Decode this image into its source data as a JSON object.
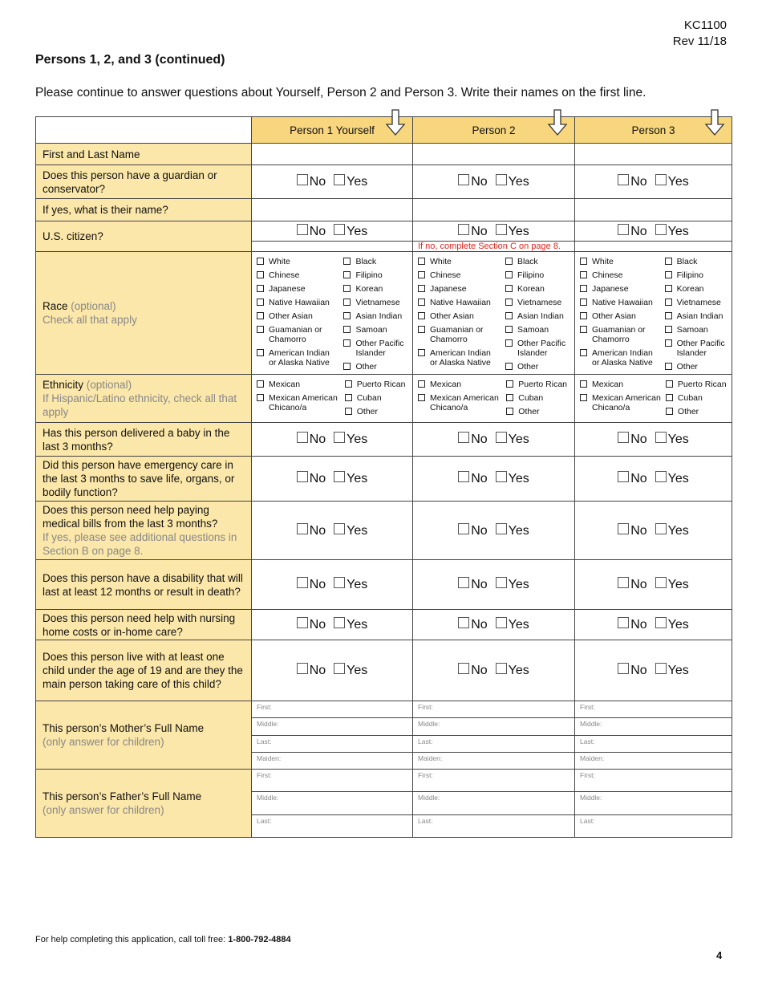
{
  "header": {
    "form_id": "KC1100",
    "revision": "Rev 11/18",
    "section_title": "Persons 1, 2, and 3 (continued)",
    "instructions": "Please continue to answer questions about Yourself, Person 2 and Person 3.  Write their names on the first line."
  },
  "colors": {
    "header_fill": "#f8d67d",
    "label_fill": "#fbe7a9",
    "note_red": "#e0261f"
  },
  "columns": [
    "Person 1 Yourself",
    "Person 2",
    "Person 3"
  ],
  "column_icon": "down-arrow-icon",
  "yes_no": {
    "no": "No",
    "yes": "Yes"
  },
  "citizen_note": "If no, complete Section C on page 8.",
  "rows": {
    "name": {
      "text": "First and Last Name"
    },
    "guardian": {
      "text": "Does this person have a guardian or conservator?"
    },
    "guardian_name": {
      "text": "If yes, what is their name?"
    },
    "citizen": {
      "text": "U.S. citizen?"
    },
    "race": {
      "text": "Race",
      "optional": " (optional)",
      "sub": "Check all that apply"
    },
    "ethnicity": {
      "text": "Ethnicity",
      "optional": " (optional)",
      "sub": "If Hispanic/Latino ethnicity, check all that apply"
    },
    "baby": {
      "text": "Has this person delivered a baby in the last 3 months?"
    },
    "emergency": {
      "text": "Did this person have emergency care in the last 3 months to save life, organs, or bodily function?"
    },
    "bills": {
      "text": "Does this person need help paying medical bills from the last 3 months?",
      "sub": "If yes, please see additional questions in Section B on page 8."
    },
    "disability": {
      "text": "Does this person have a disability that will last at least 12 months or result in death?"
    },
    "nursing": {
      "text": "Does this person need help with nursing home costs or in-home care?"
    },
    "child": {
      "text": "Does this person live with at least one child under the age of 19 and are they the main person taking care of this child?"
    },
    "mother": {
      "text": "This person’s Mother’s Full Name",
      "sub": "(only answer for children)"
    },
    "father": {
      "text": "This person’s Father’s Full Name",
      "sub": "(only answer for children)"
    }
  },
  "race_options": {
    "left": [
      "White",
      "Chinese",
      "Japanese",
      "Native Hawaiian",
      "Other Asian",
      "Guamanian or Chamorro",
      "American Indian or Alaska Native"
    ],
    "right": [
      "Black",
      "Filipino",
      "Korean",
      "Vietnamese",
      "Asian Indian",
      "Samoan",
      "Other Pacific Islander",
      "Other"
    ]
  },
  "ethnicity_options": {
    "left": [
      "Mexican",
      "Mexican American Chicano/a"
    ],
    "right": [
      "Puerto Rican",
      "Cuban",
      "Other"
    ]
  },
  "mother_fields": [
    "First:",
    "Middle:",
    "Last:",
    "Maiden:"
  ],
  "father_fields": [
    "First:",
    "Middle:",
    "Last:"
  ],
  "footer": {
    "text": "For help completing this application, call toll free:  ",
    "phone": "1-800-792-4884",
    "page": "4"
  }
}
